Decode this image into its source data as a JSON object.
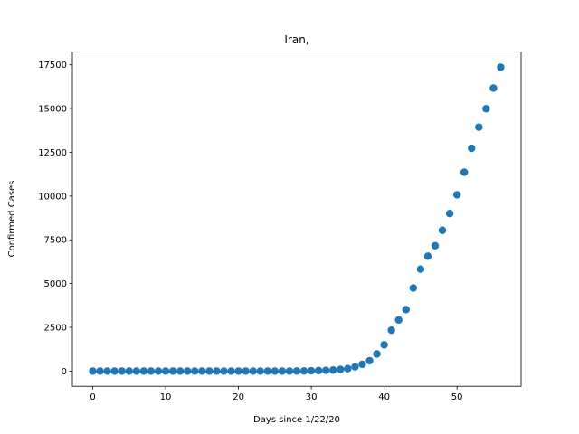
{
  "chart_data": {
    "type": "scatter",
    "title": "Iran,",
    "x_label": "Days since 1/22/20",
    "y_label": "Confirmed Cases",
    "color": "#1f77b4",
    "x": [
      0,
      1,
      2,
      3,
      4,
      5,
      6,
      7,
      8,
      9,
      10,
      11,
      12,
      13,
      14,
      15,
      16,
      17,
      18,
      19,
      20,
      21,
      22,
      23,
      24,
      25,
      26,
      27,
      28,
      29,
      30,
      31,
      32,
      33,
      34,
      35,
      36,
      37,
      38,
      39,
      40,
      41,
      42,
      43,
      44,
      45,
      46,
      47,
      48,
      49,
      50,
      51,
      52,
      53,
      54,
      55,
      56
    ],
    "y": [
      0,
      0,
      0,
      0,
      0,
      0,
      0,
      0,
      0,
      0,
      0,
      0,
      0,
      0,
      0,
      0,
      0,
      0,
      0,
      0,
      0,
      0,
      0,
      0,
      0,
      0,
      0,
      0,
      2,
      5,
      18,
      28,
      43,
      61,
      95,
      139,
      245,
      388,
      593,
      978,
      1501,
      2336,
      2922,
      3513,
      4747,
      5823,
      6566,
      7161,
      8042,
      9000,
      10075,
      11364,
      12729,
      13938,
      14991,
      16169,
      17361
    ],
    "xlim": [
      -2.8,
      58.8
    ],
    "xticks": [
      0,
      10,
      20,
      30,
      40,
      50
    ],
    "ylim": [
      -868,
      18229
    ],
    "yticks": [
      0,
      2500,
      5000,
      7500,
      10000,
      12500,
      15000,
      17500
    ]
  }
}
